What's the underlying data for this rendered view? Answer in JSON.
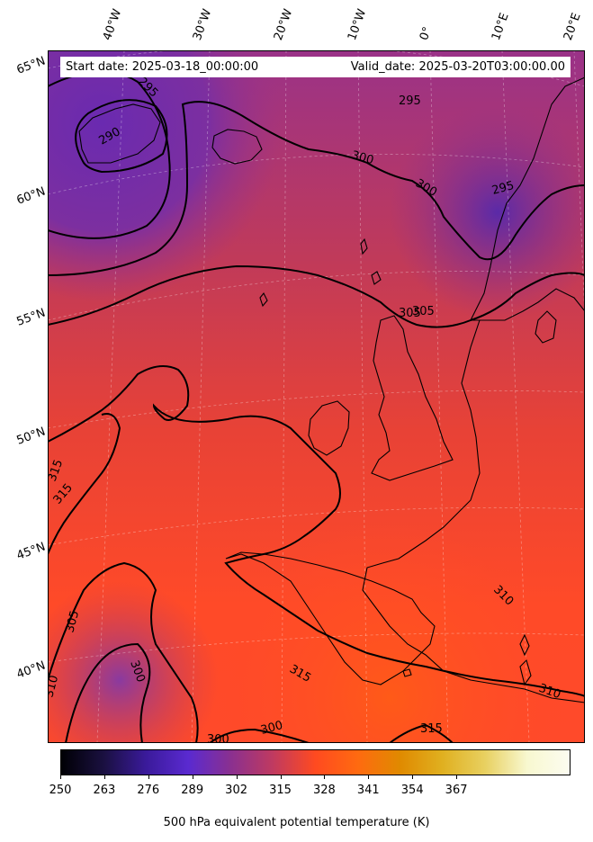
{
  "map": {
    "start_label": "Start date: 2025-03-18_00:00:00",
    "valid_label": "Valid_date: 2025-03-20T03:00:00.00",
    "longitude_labels": [
      "40°W",
      "30°W",
      "20°W",
      "10°W",
      "0°",
      "10°E",
      "20°E"
    ],
    "latitude_labels": [
      "65°N",
      "60°N",
      "55°N",
      "50°N",
      "45°N",
      "40°N"
    ],
    "contour_labels": [
      "295",
      "290",
      "295",
      "300",
      "300",
      "295",
      "305",
      "305",
      "315",
      "315",
      "305",
      "300",
      "310",
      "310",
      "310",
      "315",
      "300",
      "300",
      "315"
    ],
    "field_colors": {
      "low": "#7b2fa8",
      "mid": "#c83a5a",
      "high": "#ff4a2a",
      "warm": "#ff5a1a"
    }
  },
  "colorbar": {
    "label": "500 hPa equivalent potential temperature (K)",
    "ticks": [
      "250",
      "263",
      "276",
      "289",
      "302",
      "315",
      "328",
      "341",
      "354",
      "367"
    ],
    "colormap": [
      "#000004",
      "#1a1040",
      "#3a1a9a",
      "#5a2ad0",
      "#8a3090",
      "#c03a60",
      "#ff4a20",
      "#ff6a10",
      "#e08a00",
      "#e0b020",
      "#e8d060",
      "#f8f8d0",
      "#fcfcf0"
    ]
  }
}
